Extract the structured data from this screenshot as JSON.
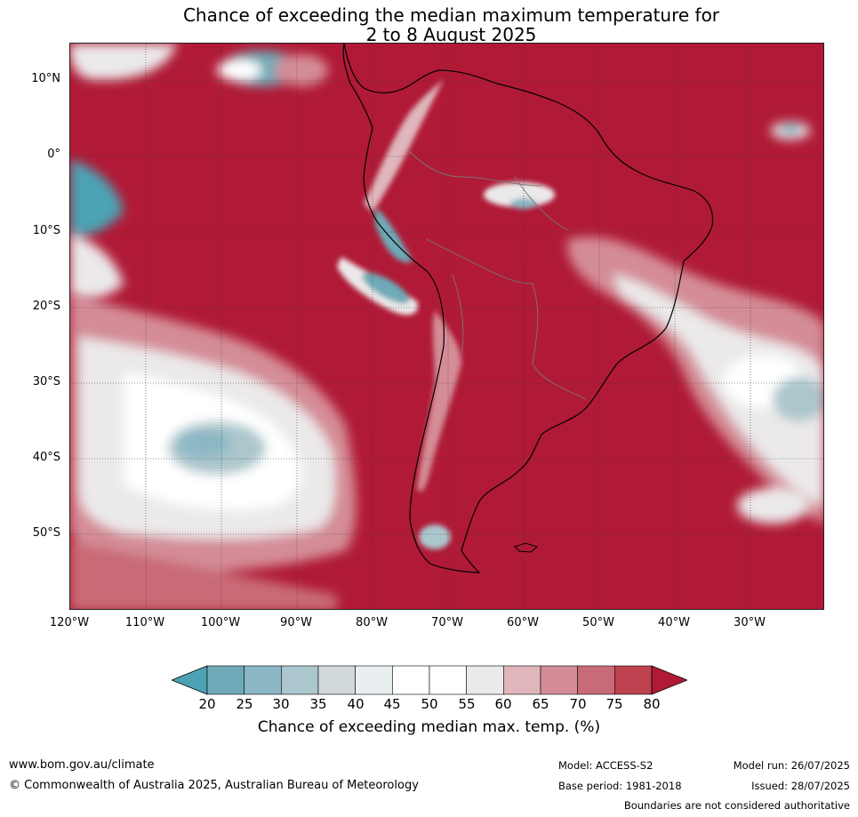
{
  "title": {
    "line1": "Chance of exceeding the median maximum temperature for",
    "line2": "2 to 8 August 2025"
  },
  "map": {
    "lat_labels": [
      "10°N",
      "0°",
      "10°S",
      "20°S",
      "30°S",
      "40°S",
      "50°S"
    ],
    "lon_labels": [
      "120°W",
      "110°W",
      "100°W",
      "90°W",
      "80°W",
      "70°W",
      "60°W",
      "50°W",
      "40°W",
      "30°W"
    ]
  },
  "colorbar": {
    "ticks": [
      "20",
      "25",
      "30",
      "35",
      "40",
      "45",
      "50",
      "55",
      "60",
      "65",
      "70",
      "75",
      "80"
    ],
    "label": "Chance of exceeding median max. temp. (%)",
    "colors": [
      "#4ba3b4",
      "#6eaab7",
      "#8bb7c5",
      "#abc6cc",
      "#d1d9db",
      "#e9eff1",
      "#ffffff",
      "#ffffff",
      "#ebe9ea",
      "#dfb6bb",
      "#d48c96",
      "#c96b76",
      "#be4250",
      "#b01a36"
    ]
  },
  "footer": {
    "website": "www.bom.gov.au/climate",
    "copyright": "© Commonwealth of Australia 2025, Australian Bureau of Meteorology",
    "model": "Model: ACCESS-S2",
    "base_period": "Base period: 1981-2018",
    "model_run": "Model run: 26/07/2025",
    "issued": "Issued: 28/07/2025",
    "disclaimer": "Boundaries are not considered authoritative"
  }
}
